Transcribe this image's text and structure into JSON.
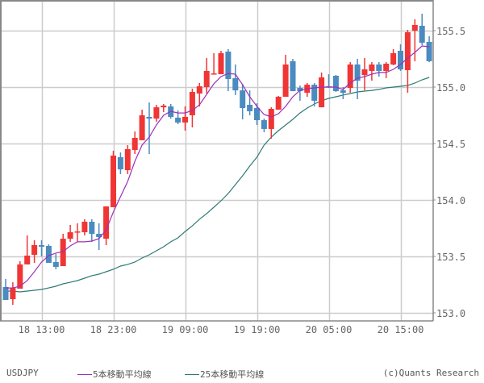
{
  "chart_data": {
    "type": "candlestick",
    "title": "",
    "symbol": "USDJPY",
    "xlabel": "",
    "ylabel": "",
    "ylim": [
      153.0,
      155.72
    ],
    "y_ticks": [
      153.0,
      153.5,
      154.0,
      154.5,
      155.0,
      155.5
    ],
    "y_tick_labels": [
      "153.0",
      "153.5",
      "154.0",
      "154.5",
      "155.0",
      "155.5"
    ],
    "x_tick_labels": [
      "18 13:00",
      "18 23:00",
      "19 09:00",
      "19 19:00",
      "20 05:00",
      "20 15:00"
    ],
    "x_tick_candle_index": [
      5,
      15,
      25,
      35,
      45,
      55
    ],
    "grid": true,
    "legend_position": "bottom",
    "colors": {
      "up": "#f03535",
      "down": "#4a8bc0",
      "ma5": "#a030b8",
      "ma25": "#2e7a74",
      "grid": "#cccccc",
      "axis": "#888888"
    },
    "candles": [
      {
        "o": 153.229,
        "h": 153.3,
        "l": 153.114,
        "c": 153.114
      },
      {
        "o": 153.121,
        "h": 153.271,
        "l": 153.071,
        "c": 153.221
      },
      {
        "o": 153.214,
        "h": 153.457,
        "l": 153.214,
        "c": 153.429
      },
      {
        "o": 153.429,
        "h": 153.686,
        "l": 153.443,
        "c": 153.507
      },
      {
        "o": 153.514,
        "h": 153.643,
        "l": 153.443,
        "c": 153.6
      },
      {
        "o": 153.6,
        "h": 153.643,
        "l": 153.5,
        "c": 153.586
      },
      {
        "o": 153.593,
        "h": 153.607,
        "l": 153.443,
        "c": 153.443
      },
      {
        "o": 153.45,
        "h": 153.521,
        "l": 153.386,
        "c": 153.407
      },
      {
        "o": 153.414,
        "h": 153.7,
        "l": 153.414,
        "c": 153.657
      },
      {
        "o": 153.657,
        "h": 153.779,
        "l": 153.629,
        "c": 153.714
      },
      {
        "o": 153.714,
        "h": 153.793,
        "l": 153.629,
        "c": 153.721
      },
      {
        "o": 153.714,
        "h": 153.829,
        "l": 153.686,
        "c": 153.807
      },
      {
        "o": 153.807,
        "h": 153.829,
        "l": 153.629,
        "c": 153.7
      },
      {
        "o": 153.7,
        "h": 153.793,
        "l": 153.557,
        "c": 153.671
      },
      {
        "o": 153.657,
        "h": 153.943,
        "l": 153.6,
        "c": 153.943
      },
      {
        "o": 153.936,
        "h": 154.436,
        "l": 153.936,
        "c": 154.393
      },
      {
        "o": 154.379,
        "h": 154.421,
        "l": 154.229,
        "c": 154.271
      },
      {
        "o": 154.264,
        "h": 154.486,
        "l": 154.229,
        "c": 154.45
      },
      {
        "o": 154.443,
        "h": 154.607,
        "l": 154.407,
        "c": 154.55
      },
      {
        "o": 154.529,
        "h": 154.8,
        "l": 154.529,
        "c": 154.75
      },
      {
        "o": 154.736,
        "h": 154.864,
        "l": 154.407,
        "c": 154.721
      },
      {
        "o": 154.721,
        "h": 154.843,
        "l": 154.693,
        "c": 154.821
      },
      {
        "o": 154.821,
        "h": 154.85,
        "l": 154.779,
        "c": 154.836
      },
      {
        "o": 154.829,
        "h": 154.85,
        "l": 154.721,
        "c": 154.736
      },
      {
        "o": 154.729,
        "h": 154.793,
        "l": 154.671,
        "c": 154.686
      },
      {
        "o": 154.686,
        "h": 154.829,
        "l": 154.614,
        "c": 154.736
      },
      {
        "o": 154.75,
        "h": 154.986,
        "l": 154.643,
        "c": 154.957
      },
      {
        "o": 154.943,
        "h": 155.036,
        "l": 154.829,
        "c": 155.007
      },
      {
        "o": 155.0,
        "h": 155.257,
        "l": 154.943,
        "c": 155.143
      },
      {
        "o": 155.114,
        "h": 155.3,
        "l": 155.114,
        "c": 155.121
      },
      {
        "o": 155.114,
        "h": 155.321,
        "l": 155.114,
        "c": 155.3
      },
      {
        "o": 155.314,
        "h": 155.336,
        "l": 154.964,
        "c": 155.071
      },
      {
        "o": 155.079,
        "h": 155.2,
        "l": 154.929,
        "c": 154.971
      },
      {
        "o": 154.971,
        "h": 155.029,
        "l": 154.714,
        "c": 154.814
      },
      {
        "o": 154.843,
        "h": 154.971,
        "l": 154.75,
        "c": 154.786
      },
      {
        "o": 154.814,
        "h": 154.857,
        "l": 154.664,
        "c": 154.707
      },
      {
        "o": 154.707,
        "h": 154.721,
        "l": 154.6,
        "c": 154.629
      },
      {
        "o": 154.629,
        "h": 154.821,
        "l": 154.543,
        "c": 154.807
      },
      {
        "o": 154.8,
        "h": 154.921,
        "l": 154.8,
        "c": 154.914
      },
      {
        "o": 154.914,
        "h": 155.286,
        "l": 154.914,
        "c": 155.2
      },
      {
        "o": 155.229,
        "h": 155.25,
        "l": 154.964,
        "c": 154.964
      },
      {
        "o": 154.993,
        "h": 155.014,
        "l": 154.879,
        "c": 154.964
      },
      {
        "o": 154.95,
        "h": 155.036,
        "l": 154.914,
        "c": 155.021
      },
      {
        "o": 155.021,
        "h": 155.036,
        "l": 154.829,
        "c": 154.879
      },
      {
        "o": 154.821,
        "h": 155.129,
        "l": 154.821,
        "c": 155.086
      },
      {
        "o": 155.007,
        "h": 155.114,
        "l": 154.993,
        "c": 155.0
      },
      {
        "o": 155.1,
        "h": 155.107,
        "l": 154.957,
        "c": 154.964
      },
      {
        "o": 154.971,
        "h": 155.0,
        "l": 154.893,
        "c": 154.95
      },
      {
        "o": 154.993,
        "h": 155.221,
        "l": 154.95,
        "c": 155.2
      },
      {
        "o": 155.2,
        "h": 155.25,
        "l": 154.893,
        "c": 155.057
      },
      {
        "o": 155.107,
        "h": 155.257,
        "l": 154.971,
        "c": 155.157
      },
      {
        "o": 155.143,
        "h": 155.221,
        "l": 155.057,
        "c": 155.2
      },
      {
        "o": 155.2,
        "h": 155.221,
        "l": 155.093,
        "c": 155.143
      },
      {
        "o": 155.143,
        "h": 155.221,
        "l": 155.079,
        "c": 155.207
      },
      {
        "o": 155.2,
        "h": 155.336,
        "l": 155.193,
        "c": 155.3
      },
      {
        "o": 155.321,
        "h": 155.379,
        "l": 155.143,
        "c": 155.157
      },
      {
        "o": 155.15,
        "h": 155.507,
        "l": 154.95,
        "c": 155.486
      },
      {
        "o": 155.5,
        "h": 155.6,
        "l": 155.229,
        "c": 155.55
      },
      {
        "o": 155.543,
        "h": 155.65,
        "l": 155.371,
        "c": 155.393
      },
      {
        "o": 155.4,
        "h": 155.45,
        "l": 155.221,
        "c": 155.229
      }
    ],
    "series": [
      {
        "name": "5本移動平均線",
        "values": [
          153.221,
          153.221,
          153.236,
          153.286,
          153.364,
          153.45,
          153.507,
          153.529,
          153.543,
          153.593,
          153.629,
          153.629,
          153.636,
          153.657,
          153.736,
          153.893,
          154.029,
          154.164,
          154.343,
          154.486,
          154.557,
          154.664,
          154.75,
          154.786,
          154.771,
          154.771,
          154.793,
          154.843,
          154.936,
          155.029,
          155.093,
          155.121,
          155.114,
          155.021,
          154.914,
          154.829,
          154.757,
          154.736,
          154.764,
          154.829,
          154.914,
          154.971,
          154.986,
          154.993,
          155.0,
          155.0,
          155.0,
          154.979,
          155.036,
          155.079,
          155.093,
          155.114,
          155.129,
          155.129,
          155.157,
          155.2,
          155.257,
          155.307,
          155.364,
          155.357
        ]
      },
      {
        "name": "25本移動平均線",
        "values": [
          153.193,
          153.193,
          153.186,
          153.193,
          153.2,
          153.207,
          153.221,
          153.236,
          153.257,
          153.271,
          153.286,
          153.307,
          153.329,
          153.343,
          153.364,
          153.386,
          153.414,
          153.429,
          153.45,
          153.486,
          153.514,
          153.55,
          153.586,
          153.629,
          153.664,
          153.721,
          153.771,
          153.829,
          153.879,
          153.936,
          153.993,
          154.057,
          154.136,
          154.214,
          154.3,
          154.379,
          154.486,
          154.557,
          154.614,
          154.664,
          154.714,
          154.771,
          154.814,
          154.85,
          154.879,
          154.9,
          154.914,
          154.929,
          154.943,
          154.957,
          154.964,
          154.971,
          154.979,
          154.993,
          155.0,
          155.007,
          155.014,
          155.036,
          155.064,
          155.086
        ]
      }
    ]
  },
  "footer": {
    "symbol": "USDJPY",
    "legend_ma5": "5本移動平均線",
    "legend_ma25": "25本移動平均線",
    "credit": "(c)Quants Research"
  }
}
